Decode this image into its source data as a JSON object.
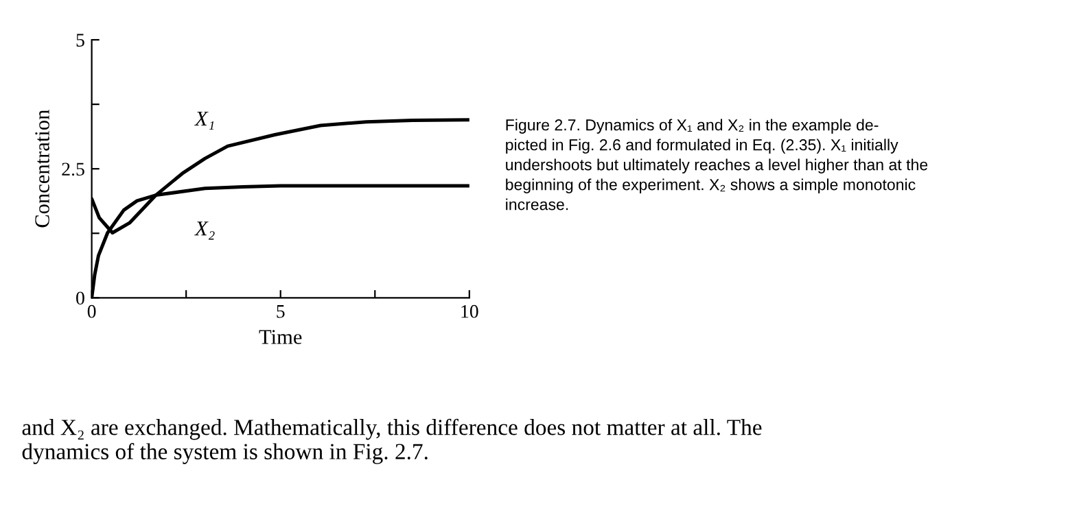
{
  "chart_data": {
    "type": "line",
    "xlabel": "Time",
    "ylabel": "Concentration",
    "xlim": [
      0,
      10
    ],
    "xticks": [
      0,
      {
        "value": 2.5,
        "label": null
      },
      5,
      {
        "value": 7.5,
        "label": null
      },
      10
    ],
    "ylim": [
      0,
      5
    ],
    "yticks": [
      0,
      {
        "value": 1.25,
        "label": null
      },
      2.5,
      {
        "value": 3.75,
        "label": null
      },
      5
    ],
    "grid": false,
    "legend": false,
    "marker": "none",
    "line_style": "solid",
    "series": [
      {
        "name": "X₁",
        "color": "#000000",
        "x": [
          0,
          0.2,
          0.55,
          1,
          1.7,
          2.4,
          3.0,
          3.6,
          4.85,
          6.06,
          7.27,
          8.5,
          10
        ],
        "values": [
          1.92,
          1.55,
          1.26,
          1.45,
          1.99,
          2.41,
          2.7,
          2.94,
          3.16,
          3.34,
          3.41,
          3.44,
          3.45
        ]
      },
      {
        "name": "X₂",
        "color": "#000000",
        "x": [
          0,
          0.08,
          0.18,
          0.42,
          0.85,
          1.2,
          1.7,
          3.0,
          4,
          5,
          6,
          7,
          8,
          9,
          10
        ],
        "values": [
          0,
          0.45,
          0.82,
          1.26,
          1.7,
          1.88,
          1.99,
          2.12,
          2.15,
          2.17,
          2.17,
          2.17,
          2.17,
          2.17,
          2.17
        ]
      }
    ],
    "annotations": [
      "Figure 2.7. Dynamics of X₁ and X₂ in the example de-\npicted in Fig. 2.6 and formulated in Eq. (2.35). X₁ initially\nundershoots but ultimately reaches a level higher than at the\nbeginning of the experiment. X₂ shows a simple monotonic\nincrease.",
      "and X₂ are exchanged. Mathematically, this difference does not matter at all. The\ndynamics of the system is shown in Fig. 2.7."
    ]
  }
}
